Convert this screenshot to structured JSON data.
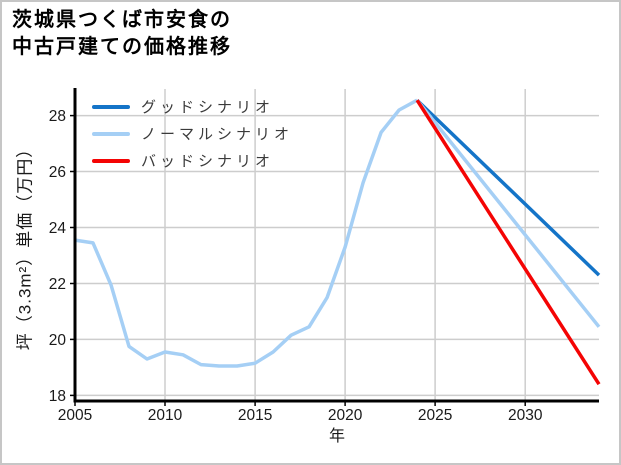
{
  "chart": {
    "title": "茨城県つくば市安食の中古戸建ての価格推移",
    "title_lines": [
      "茨城県つくば市安食の",
      "中古戸建ての価格推移"
    ],
    "xlabel": "年",
    "ylabel": "坪（3.3m²）単価（万円）"
  },
  "legend": {
    "items": [
      {
        "label": "グッドシナリオ",
        "color": "#1474c8",
        "icon": "line-swatch"
      },
      {
        "label": "ノーマルシナリオ",
        "color": "#a5cff5",
        "icon": "line-swatch"
      },
      {
        "label": "バッドシナリオ",
        "color": "#f40404",
        "icon": "line-swatch"
      }
    ]
  },
  "colors": {
    "background": "#ffffff",
    "frame_border": "#c6c6c6",
    "grid": "#cdcdcd",
    "spine": "#000000",
    "tick_label": "#1a1a1a",
    "title_text": "#000000",
    "legend_text": "#3a3a3a"
  },
  "chart_data": {
    "type": "line",
    "title": "茨城県つくば市安食の中古戸建ての価格推移",
    "xlabel": "年",
    "ylabel": "坪（3.3m²）単価（万円）",
    "xlim": [
      2005,
      2034.1
    ],
    "ylim": [
      17.8,
      28.95
    ],
    "x_ticks": [
      2005,
      2010,
      2015,
      2020,
      2025,
      2030
    ],
    "y_ticks": [
      18,
      20,
      22,
      24,
      26,
      28
    ],
    "grid": true,
    "legend_position": "upper-left",
    "series": [
      {
        "id": "historical-price",
        "legend": null,
        "color": "#a5cff5",
        "x": [
          2005,
          2006,
          2007,
          2008,
          2009,
          2010,
          2011,
          2012,
          2013,
          2014,
          2015,
          2016,
          2017,
          2018,
          2019,
          2020,
          2021,
          2022,
          2023,
          2024
        ],
        "values": [
          23.55,
          23.45,
          21.95,
          19.75,
          19.3,
          19.55,
          19.45,
          19.1,
          19.05,
          19.05,
          19.15,
          19.55,
          20.15,
          20.45,
          21.5,
          23.3,
          25.6,
          27.4,
          28.2,
          28.55
        ]
      },
      {
        "id": "good-scenario",
        "legend": "グッドシナリオ",
        "color": "#1474c8",
        "x": [
          2024,
          2034.1
        ],
        "values": [
          28.55,
          22.3
        ]
      },
      {
        "id": "normal-scenario",
        "legend": "ノーマルシナリオ",
        "color": "#a5cff5",
        "x": [
          2024,
          2034.1
        ],
        "values": [
          28.55,
          20.45
        ]
      },
      {
        "id": "bad-scenario",
        "legend": "バッドシナリオ",
        "color": "#f40404",
        "x": [
          2024,
          2034.1
        ],
        "values": [
          28.55,
          18.4
        ]
      }
    ]
  }
}
